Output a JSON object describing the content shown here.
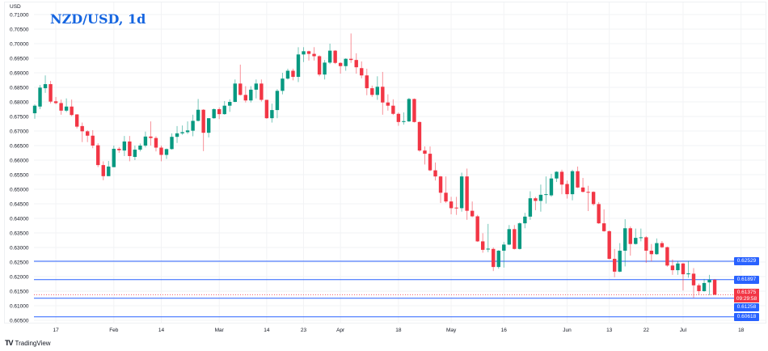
{
  "header": {
    "title": "NZD/USD, 1d",
    "unit": "USD"
  },
  "branding": {
    "logo_text": "TradingView"
  },
  "colors": {
    "up": "#089981",
    "down": "#f23645",
    "level_line": "#2962ff",
    "title": "#1565e0",
    "grid": "#f2f3f5"
  },
  "current_price": {
    "value": "0.61375",
    "countdown": "09:29:58"
  },
  "levels": [
    {
      "value": 0.62529,
      "label": "0.62529"
    },
    {
      "value": 0.61897,
      "label": "0.61897"
    },
    {
      "value": 0.61258,
      "label": "0.61258"
    },
    {
      "value": 0.60618,
      "label": "0.60618"
    }
  ],
  "chart_data": {
    "type": "candlestick",
    "title": "NZD/USD, 1d",
    "ylabel": "USD",
    "ylim": [
      0.605,
      0.71
    ],
    "grid": true,
    "y_ticks": [
      "0.71000",
      "0.70500",
      "0.70000",
      "0.69500",
      "0.69000",
      "0.68500",
      "0.68000",
      "0.67500",
      "0.67000",
      "0.66500",
      "0.66000",
      "0.65500",
      "0.65000",
      "0.64500",
      "0.64000",
      "0.63500",
      "0.63000",
      "0.62500",
      "0.62000",
      "0.61500",
      "0.61000",
      "0.60500"
    ],
    "x_ticks": [
      {
        "label": "17",
        "date": "Jan 17"
      },
      {
        "label": "Feb",
        "date": "Feb 1"
      },
      {
        "label": "14",
        "date": "Feb 14"
      },
      {
        "label": "Mar",
        "date": "Mar 1"
      },
      {
        "label": "14",
        "date": "Mar 14"
      },
      {
        "label": "23",
        "date": "Mar 23"
      },
      {
        "label": "Apr",
        "date": "Apr 1"
      },
      {
        "label": "18",
        "date": "Apr 18"
      },
      {
        "label": "May",
        "date": "May 2"
      },
      {
        "label": "16",
        "date": "May 16"
      },
      {
        "label": "Jun",
        "date": "Jun 1"
      },
      {
        "label": "13",
        "date": "Jun 13"
      },
      {
        "label": "22",
        "date": "Jun 22"
      },
      {
        "label": "Jul",
        "date": "Jul 1"
      },
      {
        "label": "18",
        "date": "Jul 18"
      }
    ],
    "columns": [
      "date",
      "open",
      "high",
      "low",
      "close"
    ],
    "candles": [
      [
        "Jan 11",
        0.6761,
        0.6792,
        0.6742,
        0.6787
      ],
      [
        "Jan 12",
        0.6784,
        0.6858,
        0.6775,
        0.6849
      ],
      [
        "Jan 13",
        0.6847,
        0.6891,
        0.6831,
        0.6861
      ],
      [
        "Jan 14",
        0.6861,
        0.6872,
        0.6795,
        0.6801
      ],
      [
        "Jan 17",
        0.6802,
        0.6817,
        0.6792,
        0.6796
      ],
      [
        "Jan 18",
        0.6796,
        0.6808,
        0.6756,
        0.677
      ],
      [
        "Jan 19",
        0.677,
        0.6812,
        0.6765,
        0.6784
      ],
      [
        "Jan 20",
        0.6784,
        0.6808,
        0.6751,
        0.6755
      ],
      [
        "Jan 21",
        0.6757,
        0.6758,
        0.6709,
        0.6715
      ],
      [
        "Jan 24",
        0.6717,
        0.6729,
        0.6662,
        0.6699
      ],
      [
        "Jan 25",
        0.6699,
        0.6703,
        0.6662,
        0.6684
      ],
      [
        "Jan 26",
        0.6684,
        0.6703,
        0.6641,
        0.665
      ],
      [
        "Jan 27",
        0.6651,
        0.6658,
        0.6576,
        0.6583
      ],
      [
        "Jan 28",
        0.6583,
        0.6596,
        0.6531,
        0.6545
      ],
      [
        "Jan 31",
        0.6545,
        0.6597,
        0.6545,
        0.6578
      ],
      [
        "Feb 1",
        0.6576,
        0.665,
        0.6576,
        0.6639
      ],
      [
        "Feb 2",
        0.6639,
        0.6645,
        0.6625,
        0.6634
      ],
      [
        "Feb 3",
        0.6633,
        0.6683,
        0.6614,
        0.6664
      ],
      [
        "Feb 4",
        0.6664,
        0.6683,
        0.6596,
        0.6614
      ],
      [
        "Feb 7",
        0.6611,
        0.665,
        0.66,
        0.6636
      ],
      [
        "Feb 8",
        0.6636,
        0.6657,
        0.663,
        0.665
      ],
      [
        "Feb 9",
        0.665,
        0.6698,
        0.6644,
        0.6681
      ],
      [
        "Feb 10",
        0.6681,
        0.6733,
        0.665,
        0.6676
      ],
      [
        "Feb 11",
        0.6676,
        0.6682,
        0.663,
        0.6643
      ],
      [
        "Feb 14",
        0.6643,
        0.665,
        0.6596,
        0.6618
      ],
      [
        "Feb 15",
        0.6618,
        0.664,
        0.6604,
        0.6638
      ],
      [
        "Feb 16",
        0.6638,
        0.6692,
        0.6636,
        0.668
      ],
      [
        "Feb 17",
        0.668,
        0.6717,
        0.6659,
        0.6692
      ],
      [
        "Feb 18",
        0.6692,
        0.6719,
        0.6687,
        0.6696
      ],
      [
        "Feb 21",
        0.6696,
        0.6733,
        0.669,
        0.6702
      ],
      [
        "Feb 22",
        0.6701,
        0.6756,
        0.6682,
        0.6735
      ],
      [
        "Feb 23",
        0.6735,
        0.681,
        0.6733,
        0.6773
      ],
      [
        "Feb 24",
        0.6773,
        0.6775,
        0.6631,
        0.6694
      ],
      [
        "Feb 25",
        0.6694,
        0.6744,
        0.6678,
        0.6744
      ],
      [
        "Feb 28",
        0.6744,
        0.6778,
        0.6742,
        0.6775
      ],
      [
        "Mar 1",
        0.6775,
        0.6781,
        0.6741,
        0.6758
      ],
      [
        "Mar 2",
        0.6758,
        0.6803,
        0.6756,
        0.6787
      ],
      [
        "Mar 3",
        0.6787,
        0.6809,
        0.6766,
        0.68
      ],
      [
        "Mar 4",
        0.68,
        0.6877,
        0.6799,
        0.6863
      ],
      [
        "Mar 7",
        0.6863,
        0.6928,
        0.6822,
        0.6824
      ],
      [
        "Mar 8",
        0.6824,
        0.6854,
        0.6798,
        0.6805
      ],
      [
        "Mar 9",
        0.6805,
        0.6854,
        0.6798,
        0.6842
      ],
      [
        "Mar 10",
        0.6842,
        0.6877,
        0.6812,
        0.6863
      ],
      [
        "Mar 11",
        0.6863,
        0.6877,
        0.6801,
        0.6807
      ],
      [
        "Mar 14",
        0.6807,
        0.6807,
        0.6742,
        0.6744
      ],
      [
        "Mar 15",
        0.6744,
        0.6794,
        0.6729,
        0.6772
      ],
      [
        "Mar 16",
        0.6772,
        0.6844,
        0.6744,
        0.6838
      ],
      [
        "Mar 17",
        0.6838,
        0.69,
        0.6826,
        0.688
      ],
      [
        "Mar 18",
        0.688,
        0.6914,
        0.6877,
        0.6907
      ],
      [
        "Mar 21",
        0.6907,
        0.6914,
        0.6874,
        0.6886
      ],
      [
        "Mar 22",
        0.6886,
        0.6988,
        0.6868,
        0.6963
      ],
      [
        "Mar 23",
        0.6963,
        0.6988,
        0.6937,
        0.6974
      ],
      [
        "Mar 24",
        0.6974,
        0.6976,
        0.6942,
        0.6965
      ],
      [
        "Mar 25",
        0.6965,
        0.6988,
        0.6942,
        0.6957
      ],
      [
        "Mar 28",
        0.6957,
        0.696,
        0.6888,
        0.6894
      ],
      [
        "Mar 29",
        0.6894,
        0.6944,
        0.6877,
        0.6935
      ],
      [
        "Mar 30",
        0.6935,
        0.7,
        0.693,
        0.6976
      ],
      [
        "Mar 31",
        0.6976,
        0.6978,
        0.693,
        0.6934
      ],
      [
        "Apr 1",
        0.6934,
        0.6936,
        0.6897,
        0.6923
      ],
      [
        "Apr 4",
        0.6923,
        0.695,
        0.6907,
        0.6948
      ],
      [
        "Apr 5",
        0.6948,
        0.7035,
        0.6934,
        0.6944
      ],
      [
        "Apr 6",
        0.6944,
        0.6967,
        0.6897,
        0.6919
      ],
      [
        "Apr 7",
        0.6916,
        0.6939,
        0.6881,
        0.6891
      ],
      [
        "Apr 8",
        0.6891,
        0.6914,
        0.6823,
        0.6847
      ],
      [
        "Apr 11",
        0.6847,
        0.6856,
        0.6817,
        0.6824
      ],
      [
        "Apr 12",
        0.6824,
        0.6888,
        0.6807,
        0.6852
      ],
      [
        "Apr 13",
        0.6852,
        0.6903,
        0.6756,
        0.6798
      ],
      [
        "Apr 14",
        0.6798,
        0.6826,
        0.677,
        0.6787
      ],
      [
        "Apr 15",
        0.6787,
        0.6809,
        0.6755,
        0.6759
      ],
      [
        "Apr 18",
        0.6759,
        0.6764,
        0.6718,
        0.6731
      ],
      [
        "Apr 19",
        0.6731,
        0.6764,
        0.6722,
        0.6734
      ],
      [
        "Apr 20",
        0.6733,
        0.6814,
        0.6731,
        0.681
      ],
      [
        "Apr 21",
        0.681,
        0.6812,
        0.6729,
        0.6731
      ],
      [
        "Apr 22",
        0.6731,
        0.6733,
        0.6629,
        0.6633
      ],
      [
        "Apr 25",
        0.6633,
        0.6647,
        0.6585,
        0.6622
      ],
      [
        "Apr 26",
        0.6622,
        0.6647,
        0.6562,
        0.6565
      ],
      [
        "Apr 27",
        0.6565,
        0.6592,
        0.653,
        0.6544
      ],
      [
        "Apr 28",
        0.6544,
        0.6546,
        0.6453,
        0.6488
      ],
      [
        "Apr 29",
        0.6488,
        0.6544,
        0.6453,
        0.6458
      ],
      [
        "May 2",
        0.6458,
        0.6474,
        0.6414,
        0.6435
      ],
      [
        "May 3",
        0.6437,
        0.6474,
        0.6412,
        0.6435
      ],
      [
        "May 4",
        0.6435,
        0.6557,
        0.6423,
        0.6544
      ],
      [
        "May 5",
        0.6544,
        0.6571,
        0.6395,
        0.6426
      ],
      [
        "May 6",
        0.6426,
        0.6458,
        0.6404,
        0.6407
      ],
      [
        "May 9",
        0.6407,
        0.6412,
        0.6319,
        0.6321
      ],
      [
        "May 10",
        0.6321,
        0.6349,
        0.6282,
        0.6292
      ],
      [
        "May 11",
        0.6293,
        0.6381,
        0.6284,
        0.6296
      ],
      [
        "May 12",
        0.6295,
        0.63,
        0.6219,
        0.6233
      ],
      [
        "May 13",
        0.6233,
        0.6291,
        0.6227,
        0.6289
      ],
      [
        "May 16",
        0.6289,
        0.6319,
        0.6231,
        0.631
      ],
      [
        "May 17",
        0.631,
        0.6377,
        0.6308,
        0.6363
      ],
      [
        "May 18",
        0.6363,
        0.6377,
        0.6293,
        0.6295
      ],
      [
        "May 19",
        0.6295,
        0.6386,
        0.6293,
        0.6383
      ],
      [
        "May 20",
        0.6383,
        0.6419,
        0.6366,
        0.6406
      ],
      [
        "May 23",
        0.6406,
        0.6493,
        0.6395,
        0.6469
      ],
      [
        "May 24",
        0.6469,
        0.6474,
        0.6428,
        0.646
      ],
      [
        "May 25",
        0.646,
        0.6516,
        0.6423,
        0.6481
      ],
      [
        "May 26",
        0.6481,
        0.6544,
        0.6451,
        0.6483
      ],
      [
        "May 27",
        0.6479,
        0.6553,
        0.6474,
        0.6537
      ],
      [
        "May 30",
        0.6537,
        0.6562,
        0.6525,
        0.656
      ],
      [
        "May 31",
        0.656,
        0.6567,
        0.6483,
        0.6516
      ],
      [
        "Jun 1",
        0.6518,
        0.653,
        0.6468,
        0.6483
      ],
      [
        "Jun 2",
        0.6483,
        0.6567,
        0.6462,
        0.6562
      ],
      [
        "Jun 3",
        0.6562,
        0.6578,
        0.6504,
        0.6506
      ],
      [
        "Jun 6",
        0.6506,
        0.6539,
        0.6489,
        0.6491
      ],
      [
        "Jun 7",
        0.6491,
        0.6512,
        0.6425,
        0.649
      ],
      [
        "Jun 8",
        0.6491,
        0.6493,
        0.6444,
        0.6449
      ],
      [
        "Jun 9",
        0.6449,
        0.6456,
        0.6381,
        0.6383
      ],
      [
        "Jun 10",
        0.6383,
        0.6431,
        0.6354,
        0.6356
      ],
      [
        "Jun 13",
        0.6356,
        0.6358,
        0.6259,
        0.6261
      ],
      [
        "Jun 14",
        0.6261,
        0.6295,
        0.6198,
        0.6217
      ],
      [
        "Jun 15",
        0.6217,
        0.6315,
        0.6215,
        0.6289
      ],
      [
        "Jun 16",
        0.6289,
        0.6397,
        0.6235,
        0.6366
      ],
      [
        "Jun 17",
        0.6366,
        0.6372,
        0.6272,
        0.6312
      ],
      [
        "Jun 20",
        0.6312,
        0.6365,
        0.631,
        0.6333
      ],
      [
        "Jun 21",
        0.6333,
        0.6365,
        0.6321,
        0.6335
      ],
      [
        "Jun 22",
        0.6335,
        0.6339,
        0.6247,
        0.6289
      ],
      [
        "Jun 23",
        0.6289,
        0.6312,
        0.6252,
        0.6277
      ],
      [
        "Jun 24",
        0.6277,
        0.6331,
        0.6275,
        0.6315
      ],
      [
        "Jun 27",
        0.6315,
        0.6322,
        0.6298,
        0.6301
      ],
      [
        "Jun 28",
        0.6301,
        0.6303,
        0.6234,
        0.6238
      ],
      [
        "Jun 29",
        0.6238,
        0.6259,
        0.6206,
        0.6222
      ],
      [
        "Jun 30",
        0.6222,
        0.6254,
        0.6206,
        0.6245
      ],
      [
        "Jul 1",
        0.6245,
        0.6247,
        0.6152,
        0.6208
      ],
      [
        "Jul 4",
        0.6208,
        0.6254,
        0.6196,
        0.6211
      ],
      [
        "Jul 5",
        0.621,
        0.6229,
        0.6127,
        0.617
      ],
      [
        "Jul 6",
        0.617,
        0.6176,
        0.6136,
        0.615
      ],
      [
        "Jul 7",
        0.615,
        0.6192,
        0.6148,
        0.6178
      ],
      [
        "Jul 8",
        0.618,
        0.6206,
        0.6136,
        0.6189
      ],
      [
        "Jul 11",
        0.6189,
        0.6192,
        0.6136,
        0.6138
      ]
    ]
  }
}
